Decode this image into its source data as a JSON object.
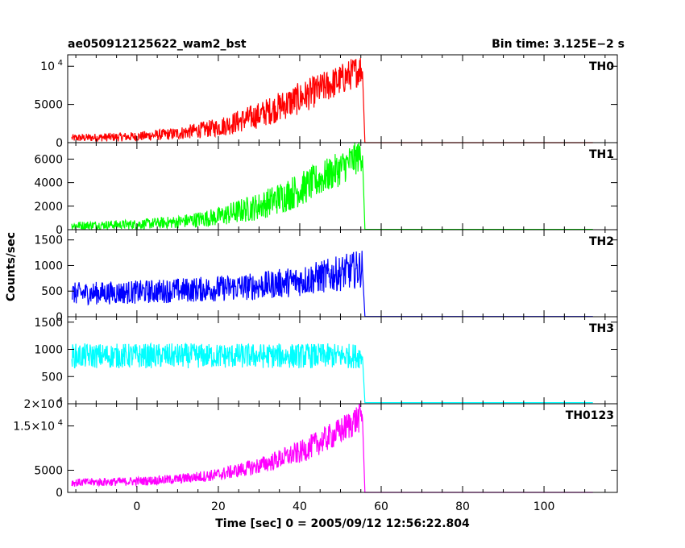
{
  "header": {
    "title": "ae050912125622_wam2_bst",
    "bin_time": "Bin time: 3.125E−2 s"
  },
  "chart_data": {
    "type": "line",
    "xlabel": "Time [sec] 0 = 2005/09/12 12:56:22.804",
    "ylabel": "Counts/sec",
    "xlim": [
      -17,
      118
    ],
    "x_ticks": [
      0,
      20,
      40,
      60,
      80,
      100
    ],
    "panels": [
      {
        "name": "TH0",
        "color": "#ff0000",
        "ylim": [
          0,
          11500
        ],
        "y_ticks": [
          {
            "v": 0,
            "label": "0"
          },
          {
            "v": 5000,
            "label": "5000"
          },
          {
            "v": 10000,
            "label": "10",
            "sup": "4"
          }
        ],
        "profile": [
          [
            -16,
            600
          ],
          [
            0,
            800
          ],
          [
            10,
            1200
          ],
          [
            20,
            2000
          ],
          [
            30,
            3600
          ],
          [
            40,
            5800
          ],
          [
            50,
            8200
          ],
          [
            55.5,
            9800
          ]
        ],
        "noise": 500,
        "after": 0
      },
      {
        "name": "TH1",
        "color": "#00ff00",
        "ylim": [
          0,
          7400
        ],
        "y_ticks": [
          {
            "v": 0,
            "label": "0"
          },
          {
            "v": 2000,
            "label": "2000"
          },
          {
            "v": 4000,
            "label": "4000"
          },
          {
            "v": 6000,
            "label": "6000"
          }
        ],
        "profile": [
          [
            -16,
            350
          ],
          [
            0,
            450
          ],
          [
            10,
            650
          ],
          [
            20,
            1100
          ],
          [
            30,
            2000
          ],
          [
            40,
            3400
          ],
          [
            50,
            5200
          ],
          [
            55.5,
            6500
          ]
        ],
        "noise": 350,
        "after": 30
      },
      {
        "name": "TH2",
        "color": "#0000ff",
        "ylim": [
          0,
          1700
        ],
        "y_ticks": [
          {
            "v": 0,
            "label": "0"
          },
          {
            "v": 500,
            "label": "500"
          },
          {
            "v": 1000,
            "label": "1000"
          },
          {
            "v": 1500,
            "label": "1500"
          }
        ],
        "profile": [
          [
            -16,
            450
          ],
          [
            0,
            480
          ],
          [
            20,
            550
          ],
          [
            30,
            600
          ],
          [
            40,
            700
          ],
          [
            50,
            850
          ],
          [
            55.5,
            950
          ]
        ],
        "noise": 220,
        "after": 5
      },
      {
        "name": "TH3",
        "color": "#00ffff",
        "ylim": [
          0,
          1600
        ],
        "y_ticks": [
          {
            "v": 0,
            "label": "0"
          },
          {
            "v": 500,
            "label": "500"
          },
          {
            "v": 1000,
            "label": "1000"
          },
          {
            "v": 1500,
            "label": "1500"
          }
        ],
        "profile": [
          [
            -16,
            880
          ],
          [
            0,
            880
          ],
          [
            20,
            880
          ],
          [
            40,
            880
          ],
          [
            55.5,
            880
          ]
        ],
        "noise": 230,
        "after": 20
      },
      {
        "name": "TH0123",
        "color": "#ff00ff",
        "ylim": [
          0,
          20000
        ],
        "y_ticks": [
          {
            "v": 0,
            "label": "0"
          },
          {
            "v": 5000,
            "label": "5000"
          },
          {
            "v": 15000,
            "label": "1.5×10",
            "sup": "4"
          },
          {
            "v": 20000,
            "label": "2×10",
            "sup": "4"
          }
        ],
        "profile": [
          [
            -16,
            2200
          ],
          [
            0,
            2500
          ],
          [
            10,
            3000
          ],
          [
            20,
            4000
          ],
          [
            30,
            6000
          ],
          [
            40,
            9000
          ],
          [
            50,
            13800
          ],
          [
            55.5,
            17500
          ]
        ],
        "noise": 900,
        "after": 0
      }
    ]
  }
}
